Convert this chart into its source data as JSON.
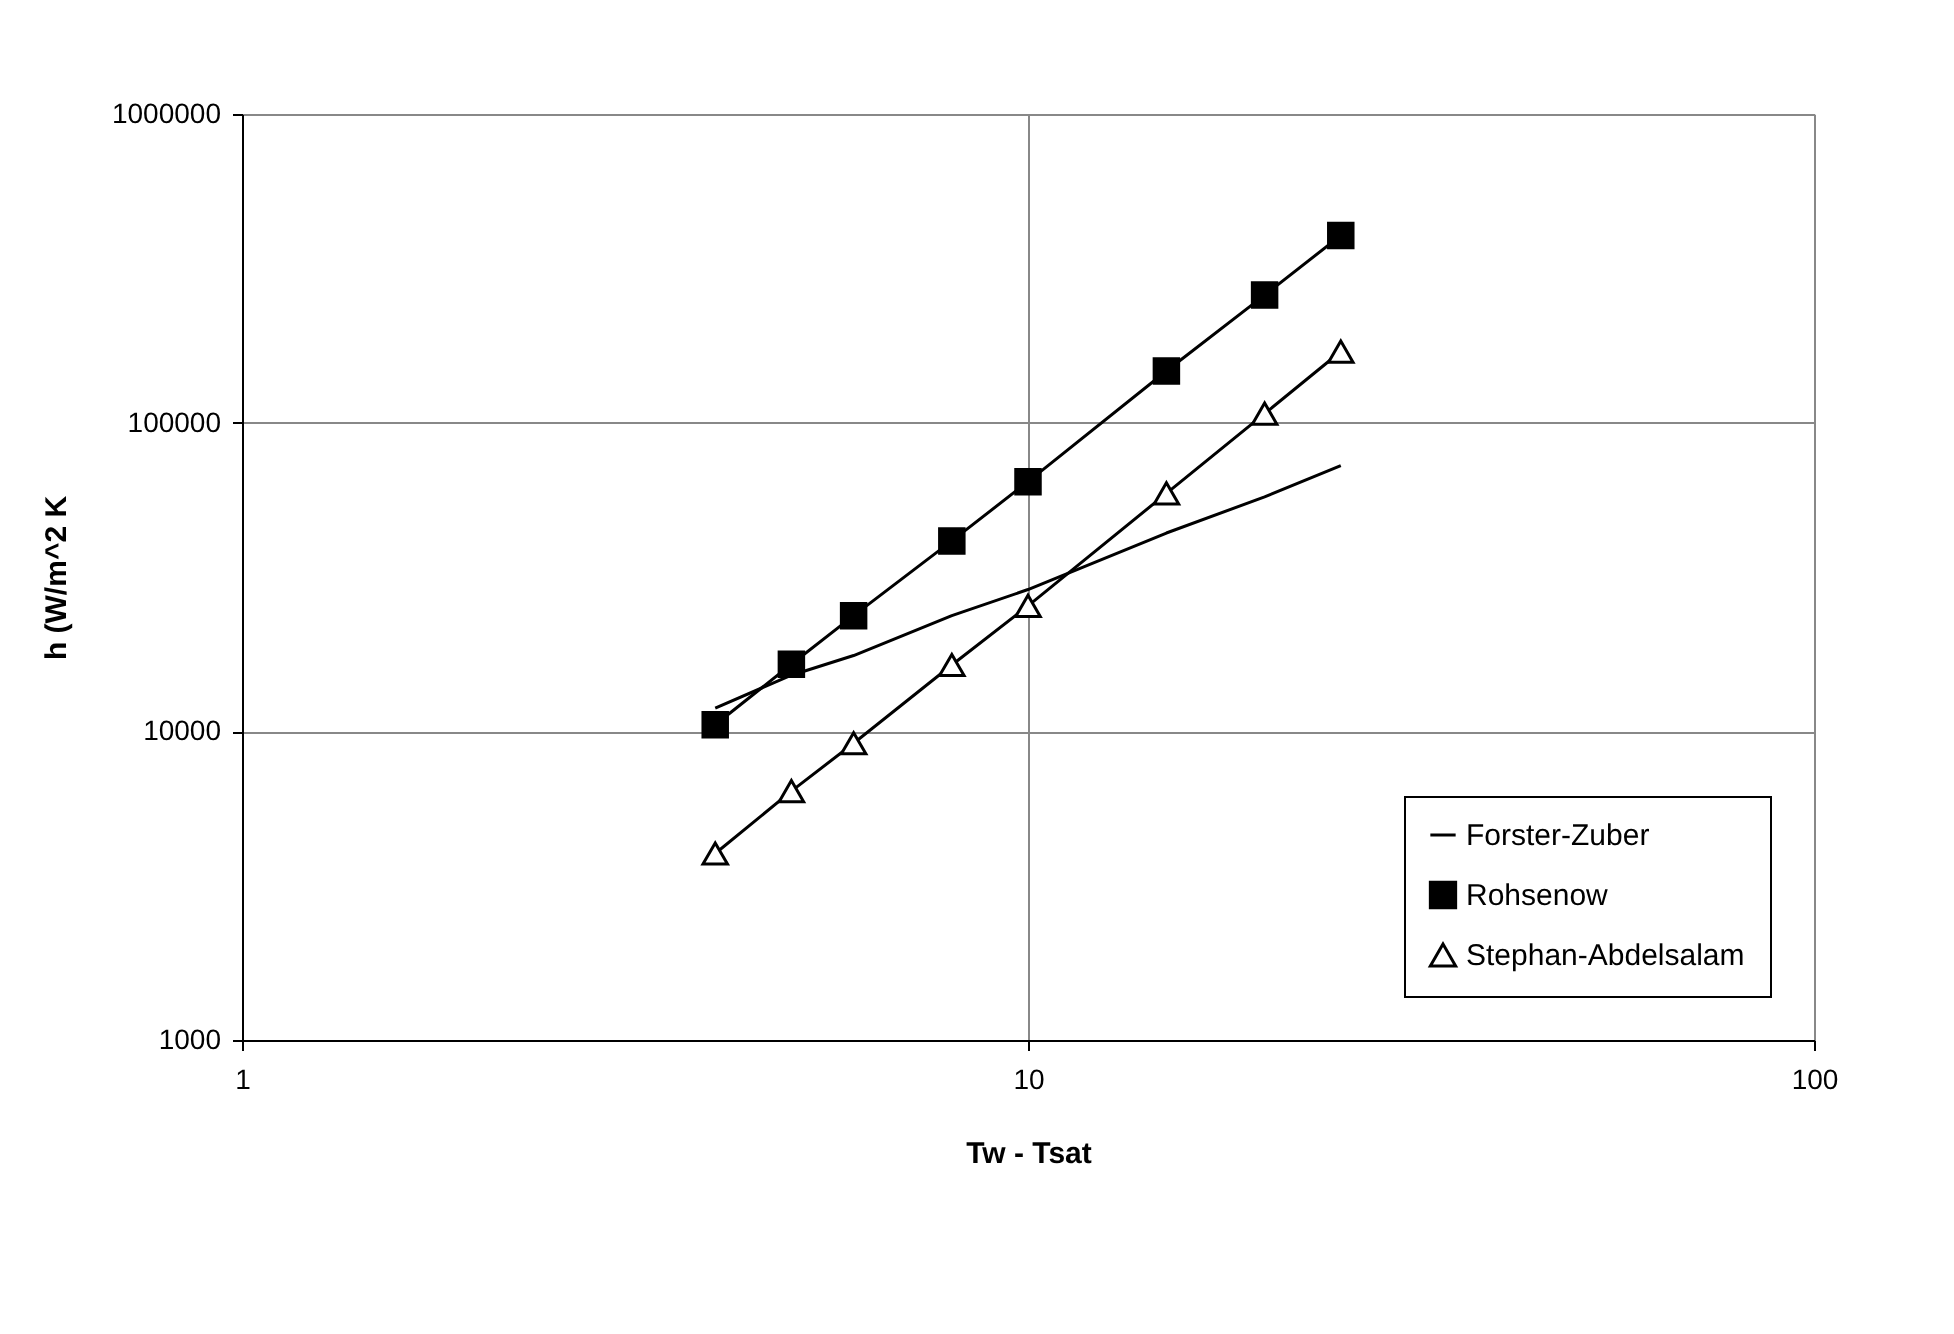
{
  "chart_data": {
    "type": "line",
    "xlabel": "Tw - Tsat",
    "ylabel": "h (W/m^2 K",
    "x": [
      4,
      5,
      6,
      8,
      10,
      15,
      20,
      25
    ],
    "xlim": [
      1,
      100
    ],
    "xticks": [
      1,
      10,
      100
    ],
    "ylim": [
      1000,
      1000000
    ],
    "yticks": [
      1000,
      10000,
      100000,
      1000000
    ],
    "log": "xy",
    "grid": true,
    "legend": "bottom right",
    "series": [
      {
        "name": "Forster-Zuber",
        "color": "#000000",
        "marker": "none",
        "values": [
          11900,
          15200,
          17600,
          23700,
          28800,
          43900,
          57500,
          72600
        ]
      },
      {
        "name": "Rohsenow",
        "color": "#000000",
        "marker": "square",
        "values": [
          10500,
          16500,
          23700,
          41400,
          64400,
          147000,
          259000,
          404000
        ]
      },
      {
        "name": "Stephan-Abdelsalam",
        "color": "#000000",
        "marker": "triangle",
        "values": [
          4020,
          6400,
          9150,
          16400,
          25500,
          59000,
          107000,
          170000
        ]
      }
    ]
  }
}
